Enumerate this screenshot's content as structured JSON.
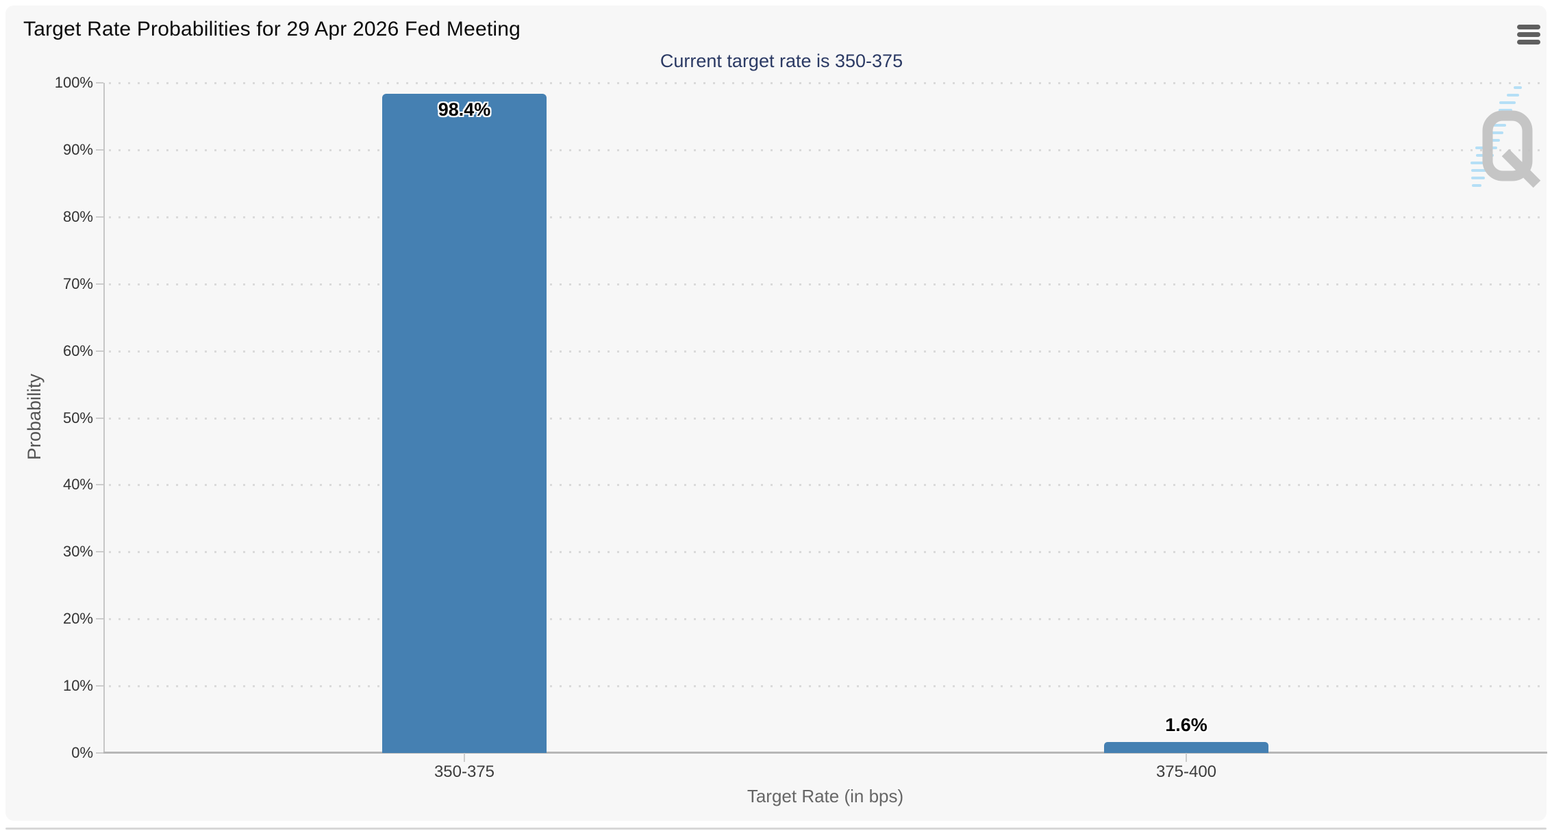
{
  "header": {
    "menu_icon": "hamburger-icon"
  },
  "chart_data": {
    "type": "bar",
    "title": "Target Rate Probabilities for 29 Apr 2026 Fed Meeting",
    "subtitle": "Current target rate is 350-375",
    "categories": [
      "350-375",
      "375-400"
    ],
    "values": [
      98.4,
      1.6
    ],
    "value_labels": [
      "98.4%",
      "1.6%"
    ],
    "xlabel": "Target Rate (in bps)",
    "ylabel": "Probability",
    "ylim": [
      0,
      100
    ],
    "ytick_labels": [
      "0%",
      "10%",
      "20%",
      "30%",
      "40%",
      "50%",
      "60%",
      "70%",
      "80%",
      "90%",
      "100%"
    ],
    "grid": "dotted-horizontal",
    "legend": "none",
    "bar_color": "#4580b2"
  },
  "watermark": {
    "name": "quikstrike-q-logo",
    "letter": "Q"
  },
  "colors": {
    "card_background": "#f7f7f7",
    "subtitle_text": "#2b3a64",
    "bar": "#4580b2",
    "axis_line": "#b7b7b7",
    "grid_dots": "#dadada",
    "tick_text": "#333333",
    "axis_title_text": "#666666"
  }
}
